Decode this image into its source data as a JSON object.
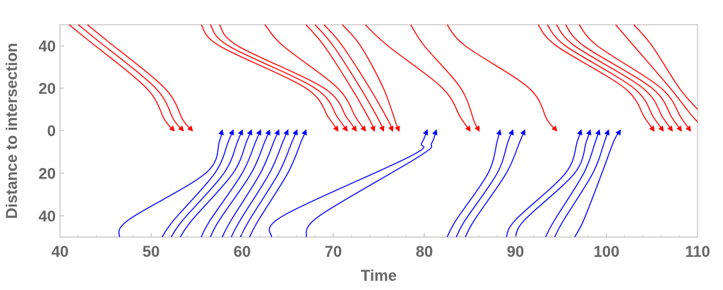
{
  "chart_data": {
    "type": "line",
    "title": "",
    "xlabel": "Time",
    "ylabel": "Distance to intersection",
    "xlim": [
      40,
      110
    ],
    "ylim_top_panel": [
      0,
      50
    ],
    "ylim_bottom_panel": [
      0,
      50
    ],
    "x_ticks": [
      "40",
      "50",
      "60",
      "70",
      "80",
      "90",
      "100",
      "110"
    ],
    "y_ticks_top": [
      "40",
      "20",
      "0"
    ],
    "y_ticks_bottom": [
      "20",
      "40"
    ],
    "colors": {
      "approach_from_top": "#ff0000",
      "approach_from_bottom": "#0000ff",
      "frame": "#b0b0b0",
      "text": "#666666"
    },
    "series": [
      {
        "color": "red",
        "direction": "down",
        "points": [
          [
            41.0,
            50
          ],
          [
            43.0,
            43
          ],
          [
            49.5,
            20
          ],
          [
            51.5,
            5
          ],
          [
            52.5,
            0
          ]
        ]
      },
      {
        "color": "red",
        "direction": "down",
        "points": [
          [
            42.0,
            50
          ],
          [
            44.0,
            43
          ],
          [
            50.5,
            20
          ],
          [
            52.5,
            5
          ],
          [
            53.5,
            0
          ]
        ]
      },
      {
        "color": "red",
        "direction": "down",
        "points": [
          [
            43.0,
            50
          ],
          [
            45.0,
            43
          ],
          [
            51.5,
            20
          ],
          [
            53.5,
            5
          ],
          [
            54.5,
            0
          ]
        ]
      },
      {
        "color": "red",
        "direction": "down",
        "points": [
          [
            55.5,
            50
          ],
          [
            57.5,
            40
          ],
          [
            67.0,
            20
          ],
          [
            69.5,
            6
          ],
          [
            70.5,
            0
          ]
        ]
      },
      {
        "color": "red",
        "direction": "down",
        "points": [
          [
            56.5,
            50
          ],
          [
            58.5,
            40
          ],
          [
            68.0,
            20
          ],
          [
            70.5,
            6
          ],
          [
            71.5,
            0
          ]
        ]
      },
      {
        "color": "red",
        "direction": "down",
        "points": [
          [
            57.5,
            50
          ],
          [
            59.5,
            40
          ],
          [
            69.0,
            20
          ],
          [
            71.5,
            6
          ],
          [
            72.5,
            0
          ]
        ]
      },
      {
        "color": "red",
        "direction": "down",
        "points": [
          [
            62.5,
            50
          ],
          [
            64.5,
            40
          ],
          [
            70.5,
            20
          ],
          [
            72.5,
            6
          ],
          [
            73.5,
            0
          ]
        ]
      },
      {
        "color": "red",
        "direction": "down",
        "points": [
          [
            67.0,
            50
          ],
          [
            69.0,
            40
          ],
          [
            72.0,
            20
          ],
          [
            74.0,
            5
          ],
          [
            74.5,
            0
          ]
        ]
      },
      {
        "color": "red",
        "direction": "down",
        "points": [
          [
            68.0,
            50
          ],
          [
            70.0,
            40
          ],
          [
            73.0,
            20
          ],
          [
            75.0,
            5
          ],
          [
            75.5,
            0
          ]
        ]
      },
      {
        "color": "red",
        "direction": "down",
        "points": [
          [
            69.0,
            50
          ],
          [
            71.0,
            40
          ],
          [
            74.0,
            20
          ],
          [
            76.0,
            5
          ],
          [
            76.5,
            0
          ]
        ]
      },
      {
        "color": "red",
        "direction": "down",
        "points": [
          [
            71.0,
            50
          ],
          [
            73.0,
            40
          ],
          [
            75.5,
            20
          ],
          [
            77.0,
            2
          ],
          [
            77.2,
            0
          ]
        ]
      },
      {
        "color": "red",
        "direction": "down",
        "points": [
          [
            73.5,
            50
          ],
          [
            76.0,
            40
          ],
          [
            82.0,
            20
          ],
          [
            84.0,
            6
          ],
          [
            85.0,
            0
          ]
        ]
      },
      {
        "color": "red",
        "direction": "down",
        "points": [
          [
            78.5,
            50
          ],
          [
            80.0,
            40
          ],
          [
            84.0,
            20
          ],
          [
            85.5,
            4
          ],
          [
            86.0,
            0
          ]
        ]
      },
      {
        "color": "red",
        "direction": "down",
        "points": [
          [
            82.5,
            50
          ],
          [
            84.5,
            40
          ],
          [
            91.5,
            20
          ],
          [
            93.5,
            5
          ],
          [
            94.5,
            0
          ]
        ]
      },
      {
        "color": "red",
        "direction": "down",
        "points": [
          [
            92.5,
            50
          ],
          [
            94.5,
            40
          ],
          [
            102.0,
            20
          ],
          [
            104.2,
            6
          ],
          [
            105.2,
            0
          ]
        ]
      },
      {
        "color": "red",
        "direction": "down",
        "points": [
          [
            93.5,
            50
          ],
          [
            95.5,
            40
          ],
          [
            103.0,
            20
          ],
          [
            105.2,
            6
          ],
          [
            106.2,
            0
          ]
        ]
      },
      {
        "color": "red",
        "direction": "down",
        "points": [
          [
            94.5,
            50
          ],
          [
            96.5,
            40
          ],
          [
            104.0,
            20
          ],
          [
            106.2,
            6
          ],
          [
            107.2,
            0
          ]
        ]
      },
      {
        "color": "red",
        "direction": "down",
        "points": [
          [
            95.5,
            50
          ],
          [
            97.5,
            40
          ],
          [
            105.0,
            20
          ],
          [
            107.2,
            6
          ],
          [
            108.2,
            0
          ]
        ]
      },
      {
        "color": "red",
        "direction": "down",
        "points": [
          [
            97.0,
            50
          ],
          [
            99.0,
            40
          ],
          [
            106.0,
            20
          ],
          [
            108.2,
            6
          ],
          [
            109.2,
            0
          ]
        ]
      },
      {
        "color": "red",
        "direction": "down",
        "points": [
          [
            101.0,
            50
          ],
          [
            103.0,
            40
          ],
          [
            107.0,
            20
          ],
          [
            109.0,
            9
          ],
          [
            110.0,
            4
          ]
        ]
      },
      {
        "color": "red",
        "direction": "down",
        "points": [
          [
            103.0,
            50
          ],
          [
            105.0,
            40
          ],
          [
            108.0,
            20
          ],
          [
            110.0,
            10
          ]
        ]
      },
      {
        "color": "blue",
        "direction": "up",
        "points": [
          [
            46.5,
            50
          ],
          [
            47.5,
            42
          ],
          [
            56.0,
            20
          ],
          [
            57.5,
            5
          ],
          [
            57.8,
            0
          ]
        ]
      },
      {
        "color": "blue",
        "direction": "up",
        "points": [
          [
            51.2,
            50
          ],
          [
            52.5,
            42
          ],
          [
            57.0,
            20
          ],
          [
            58.5,
            5
          ],
          [
            59.0,
            0
          ]
        ]
      },
      {
        "color": "blue",
        "direction": "up",
        "points": [
          [
            52.2,
            50
          ],
          [
            53.5,
            42
          ],
          [
            58.0,
            20
          ],
          [
            59.5,
            5
          ],
          [
            60.0,
            0
          ]
        ]
      },
      {
        "color": "blue",
        "direction": "up",
        "points": [
          [
            53.2,
            50
          ],
          [
            54.5,
            42
          ],
          [
            59.0,
            20
          ],
          [
            60.5,
            5
          ],
          [
            61.0,
            0
          ]
        ]
      },
      {
        "color": "blue",
        "direction": "up",
        "points": [
          [
            55.5,
            50
          ],
          [
            56.5,
            42
          ],
          [
            60.0,
            20
          ],
          [
            61.5,
            5
          ],
          [
            62.0,
            0
          ]
        ]
      },
      {
        "color": "blue",
        "direction": "up",
        "points": [
          [
            56.5,
            50
          ],
          [
            57.5,
            42
          ],
          [
            61.0,
            20
          ],
          [
            62.5,
            5
          ],
          [
            63.0,
            0
          ]
        ]
      },
      {
        "color": "blue",
        "direction": "up",
        "points": [
          [
            57.8,
            50
          ],
          [
            58.8,
            42
          ],
          [
            62.0,
            20
          ],
          [
            63.5,
            5
          ],
          [
            64.0,
            0
          ]
        ]
      },
      {
        "color": "blue",
        "direction": "up",
        "points": [
          [
            58.8,
            50
          ],
          [
            59.8,
            42
          ],
          [
            63.0,
            20
          ],
          [
            64.5,
            5
          ],
          [
            65.0,
            0
          ]
        ]
      },
      {
        "color": "blue",
        "direction": "up",
        "points": [
          [
            59.8,
            50
          ],
          [
            60.8,
            42
          ],
          [
            64.0,
            20
          ],
          [
            65.5,
            5
          ],
          [
            66.0,
            0
          ]
        ]
      },
      {
        "color": "blue",
        "direction": "up",
        "points": [
          [
            60.8,
            50
          ],
          [
            61.8,
            42
          ],
          [
            65.0,
            20
          ],
          [
            66.5,
            5
          ],
          [
            67.0,
            0
          ]
        ]
      },
      {
        "color": "blue",
        "direction": "up",
        "points": [
          [
            63.2,
            50
          ],
          [
            64.5,
            40
          ],
          [
            78.5,
            12
          ],
          [
            79.7,
            6
          ],
          [
            80.3,
            0
          ]
        ]
      },
      {
        "color": "blue",
        "direction": "up",
        "points": [
          [
            67.0,
            50
          ],
          [
            68.5,
            40
          ],
          [
            79.5,
            12
          ],
          [
            80.8,
            6
          ],
          [
            81.3,
            0
          ]
        ]
      },
      {
        "color": "blue",
        "direction": "up",
        "points": [
          [
            82.5,
            50
          ],
          [
            83.5,
            42
          ],
          [
            87.0,
            20
          ],
          [
            88.0,
            5
          ],
          [
            88.3,
            0
          ]
        ]
      },
      {
        "color": "blue",
        "direction": "up",
        "points": [
          [
            83.5,
            50
          ],
          [
            84.5,
            42
          ],
          [
            88.0,
            20
          ],
          [
            89.2,
            5
          ],
          [
            89.7,
            0
          ]
        ]
      },
      {
        "color": "blue",
        "direction": "up",
        "points": [
          [
            84.5,
            50
          ],
          [
            85.5,
            42
          ],
          [
            89.0,
            20
          ],
          [
            90.5,
            5
          ],
          [
            91.0,
            0
          ]
        ]
      },
      {
        "color": "blue",
        "direction": "up",
        "points": [
          [
            89.0,
            50
          ],
          [
            90.0,
            42
          ],
          [
            95.5,
            20
          ],
          [
            96.8,
            5
          ],
          [
            97.2,
            0
          ]
        ]
      },
      {
        "color": "blue",
        "direction": "up",
        "points": [
          [
            90.0,
            50
          ],
          [
            91.0,
            42
          ],
          [
            96.5,
            20
          ],
          [
            97.8,
            5
          ],
          [
            98.2,
            0
          ]
        ]
      },
      {
        "color": "blue",
        "direction": "up",
        "points": [
          [
            93.3,
            50
          ],
          [
            94.3,
            42
          ],
          [
            97.5,
            20
          ],
          [
            98.8,
            5
          ],
          [
            99.2,
            0
          ]
        ]
      },
      {
        "color": "blue",
        "direction": "up",
        "points": [
          [
            94.3,
            50
          ],
          [
            95.3,
            42
          ],
          [
            98.5,
            20
          ],
          [
            99.8,
            5
          ],
          [
            100.2,
            0
          ]
        ]
      },
      {
        "color": "blue",
        "direction": "up",
        "points": [
          [
            96.5,
            50
          ],
          [
            97.5,
            42
          ],
          [
            99.5,
            20
          ],
          [
            100.8,
            5
          ],
          [
            101.5,
            0
          ]
        ]
      }
    ]
  }
}
